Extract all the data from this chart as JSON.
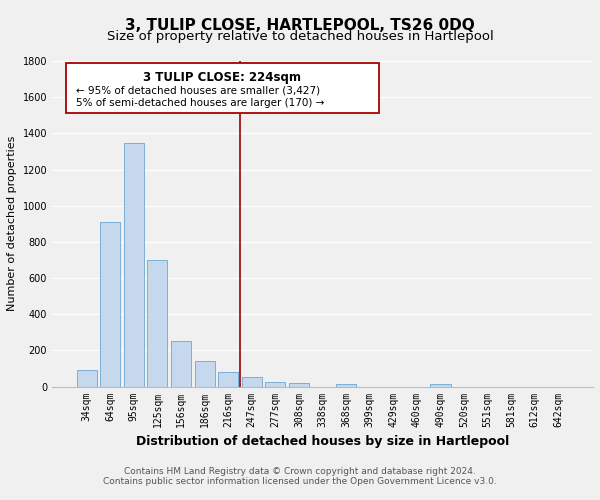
{
  "title": "3, TULIP CLOSE, HARTLEPOOL, TS26 0DQ",
  "subtitle": "Size of property relative to detached houses in Hartlepool",
  "xlabel": "Distribution of detached houses by size in Hartlepool",
  "ylabel": "Number of detached properties",
  "bar_labels": [
    "34sqm",
    "64sqm",
    "95sqm",
    "125sqm",
    "156sqm",
    "186sqm",
    "216sqm",
    "247sqm",
    "277sqm",
    "308sqm",
    "338sqm",
    "368sqm",
    "399sqm",
    "429sqm",
    "460sqm",
    "490sqm",
    "520sqm",
    "551sqm",
    "581sqm",
    "612sqm",
    "642sqm"
  ],
  "bar_values": [
    90,
    910,
    1345,
    700,
    250,
    140,
    80,
    55,
    25,
    20,
    0,
    15,
    0,
    0,
    0,
    15,
    0,
    0,
    0,
    0,
    0
  ],
  "bar_color": "#c5d8ed",
  "bar_edge_color": "#7aafd4",
  "ylim": [
    0,
    1800
  ],
  "yticks": [
    0,
    200,
    400,
    600,
    800,
    1000,
    1200,
    1400,
    1600,
    1800
  ],
  "vline_x": 6.5,
  "vline_color": "#990000",
  "annotation_title": "3 TULIP CLOSE: 224sqm",
  "annotation_line1": "← 95% of detached houses are smaller (3,427)",
  "annotation_line2": "5% of semi-detached houses are larger (170) →",
  "annotation_box_color": "#ffffff",
  "annotation_box_edge": "#aa0000",
  "footnote1": "Contains HM Land Registry data © Crown copyright and database right 2024.",
  "footnote2": "Contains public sector information licensed under the Open Government Licence v3.0.",
  "background_color": "#f0f0f0",
  "grid_color": "#ffffff",
  "title_fontsize": 11,
  "subtitle_fontsize": 9.5,
  "xlabel_fontsize": 9,
  "ylabel_fontsize": 8,
  "tick_fontsize": 7,
  "footnote_fontsize": 6.5,
  "annotation_title_fontsize": 8.5,
  "annotation_text_fontsize": 7.5
}
